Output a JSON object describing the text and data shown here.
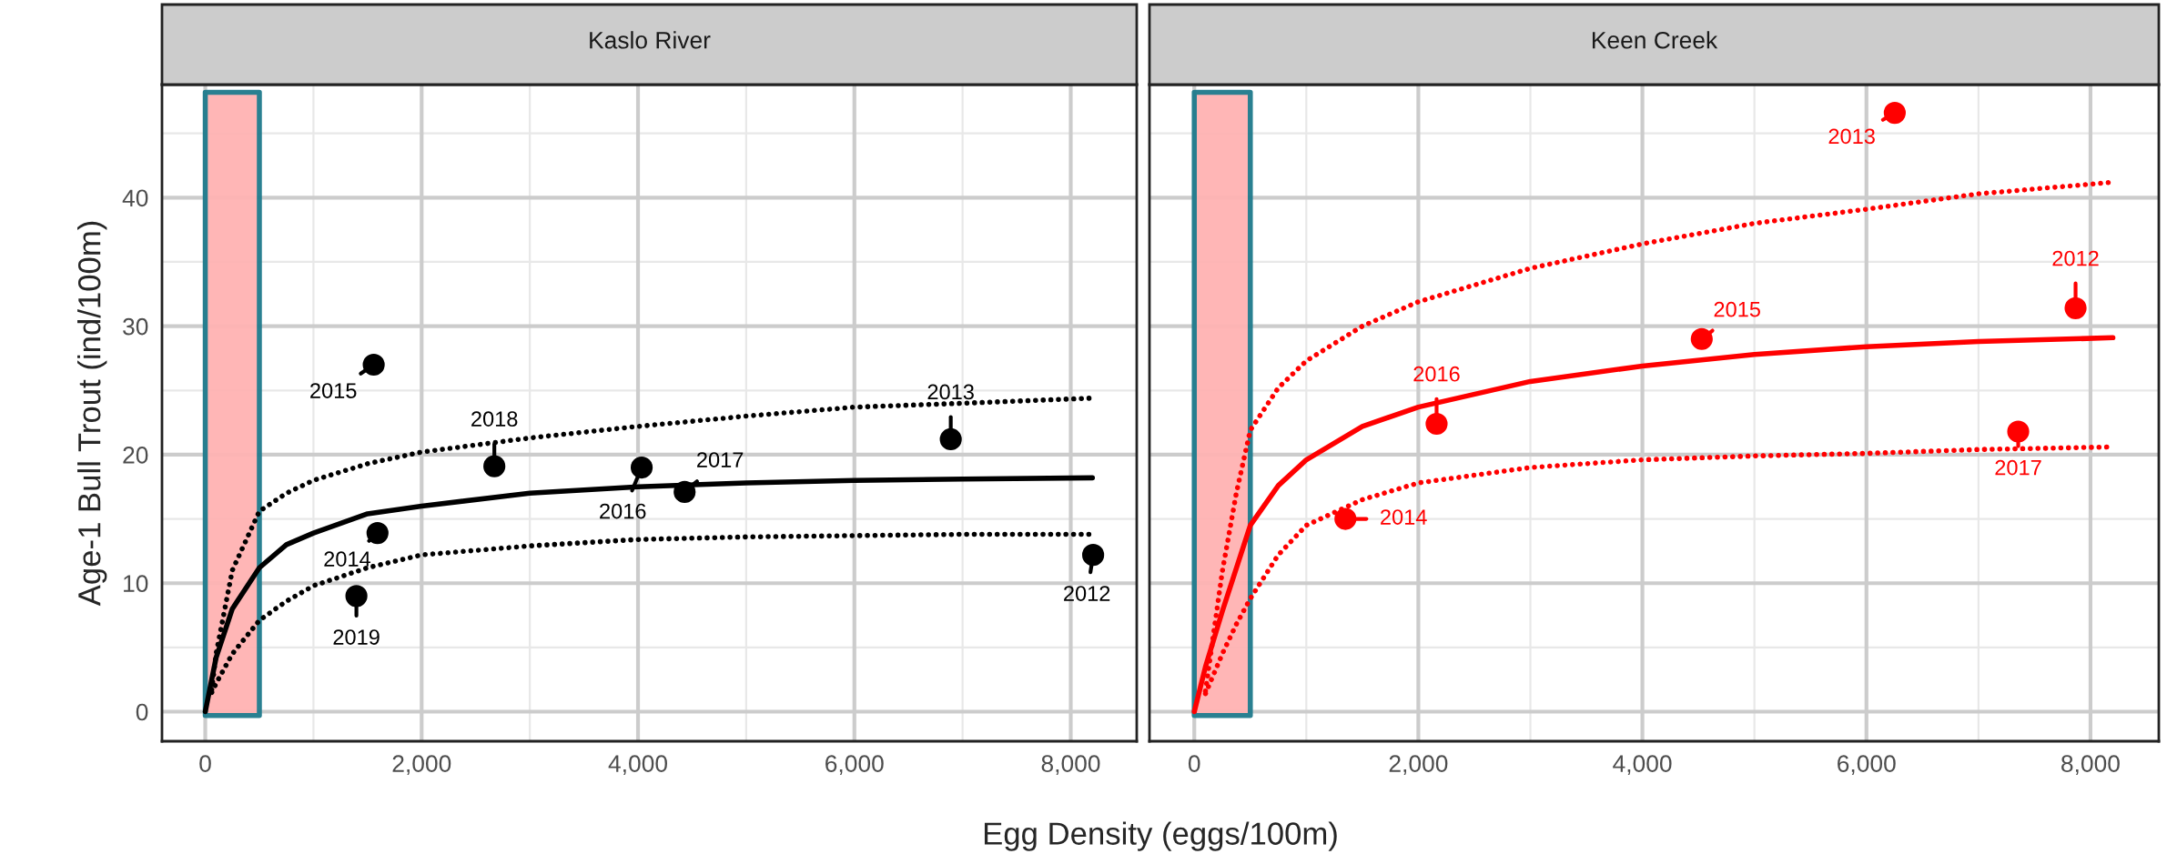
{
  "chart_data": [
    {
      "type": "scatter",
      "title": "Kaslo River",
      "xlabel": "Egg Density (eggs/100m)",
      "ylabel": "Age-1 Bull Trout (ind/100m)",
      "xlim": [
        -400,
        8610
      ],
      "ylim": [
        -2.3,
        48.8
      ],
      "xticks": [
        0,
        {
          "value": 2000,
          "label": "2,000"
        },
        {
          "value": 4000,
          "label": "4,000"
        },
        {
          "value": 6000,
          "label": "6,000"
        },
        {
          "value": 8000,
          "label": "8,000"
        }
      ],
      "yticks": [
        0,
        10,
        20,
        30,
        40
      ],
      "grid": true,
      "bands": [
        {
          "axis": "x",
          "from": 0,
          "to": 500,
          "color": "#ffb3b3"
        }
      ],
      "series": [
        {
          "marker": "circle",
          "color": "#000000",
          "x": [
            1557,
            2672,
            4034,
            4431,
            6891,
            1592,
            1397,
            8207
          ],
          "values": [
            27.0,
            19.1,
            19.0,
            17.1,
            21.2,
            13.9,
            9.0,
            12.2
          ]
        },
        {
          "type": "line",
          "color": "#000000",
          "line_style": "solid",
          "x": [
            0,
            100,
            250,
            500,
            750,
            1000,
            1500,
            2000,
            3000,
            4000,
            5000,
            6000,
            7000,
            8200
          ],
          "values": [
            0,
            4.2,
            8.0,
            11.2,
            13.0,
            13.9,
            15.4,
            16.0,
            17.0,
            17.5,
            17.8,
            18.0,
            18.1,
            18.2
          ]
        },
        {
          "type": "line",
          "color": "#000000",
          "line_style": "dotted",
          "x": [
            60,
            100,
            250,
            500,
            750,
            1000,
            1500,
            2000,
            3000,
            4000,
            5000,
            6000,
            7000,
            8200
          ],
          "values": [
            1.7,
            4.5,
            11.0,
            15.6,
            17.0,
            18.0,
            19.3,
            20.2,
            21.3,
            22.2,
            23.0,
            23.7,
            24.0,
            24.4
          ]
        },
        {
          "type": "line",
          "color": "#000000",
          "line_style": "dotted",
          "x": [
            60,
            100,
            250,
            500,
            750,
            1000,
            1500,
            2000,
            3000,
            4000,
            5000,
            6000,
            7000,
            8200
          ],
          "values": [
            1.5,
            2.2,
            4.5,
            7.1,
            8.6,
            9.8,
            11.2,
            12.2,
            12.9,
            13.4,
            13.6,
            13.7,
            13.8,
            13.8
          ]
        }
      ],
      "annotations": [
        {
          "text": "2015",
          "x": 1557,
          "y": 27.0
        },
        {
          "text": "2018",
          "x": 2672,
          "y": 19.1
        },
        {
          "text": "2016",
          "x": 4034,
          "y": 19.0
        },
        {
          "text": "2017",
          "x": 4431,
          "y": 17.1
        },
        {
          "text": "2013",
          "x": 6891,
          "y": 21.2
        },
        {
          "text": "2014",
          "x": 1592,
          "y": 13.9
        },
        {
          "text": "2019",
          "x": 1397,
          "y": 9.0
        },
        {
          "text": "2012",
          "x": 8207,
          "y": 12.2
        }
      ]
    },
    {
      "type": "scatter",
      "title": "Keen Creek",
      "xlim": [
        -400,
        8610
      ],
      "ylim": [
        -2.3,
        48.8
      ],
      "tick_labels": "x",
      "xticks": [
        0,
        {
          "value": 2000,
          "label": "2,000"
        },
        {
          "value": 4000,
          "label": "4,000"
        },
        {
          "value": 6000,
          "label": "6,000"
        },
        {
          "value": 8000,
          "label": "8,000"
        }
      ],
      "yticks": [
        0,
        10,
        20,
        30,
        40
      ],
      "grid": true,
      "bands": [
        {
          "axis": "x",
          "from": 0,
          "to": 500,
          "color": "#ffb3b3"
        }
      ],
      "series": [
        {
          "marker": "circle",
          "color": "#ff0000",
          "x": [
            6253,
            7867,
            4530,
            2163,
            7355,
            1349
          ],
          "values": [
            46.6,
            31.4,
            29.0,
            22.4,
            21.8,
            15.0
          ]
        },
        {
          "type": "line",
          "color": "#ff0000",
          "line_style": "solid",
          "x": [
            0,
            100,
            250,
            500,
            750,
            1000,
            1500,
            2000,
            3000,
            4000,
            5000,
            6000,
            7000,
            8200
          ],
          "values": [
            0,
            3.5,
            7.8,
            14.5,
            17.6,
            19.6,
            22.2,
            23.7,
            25.7,
            26.9,
            27.8,
            28.4,
            28.8,
            29.1
          ]
        },
        {
          "type": "line",
          "color": "#ff0000",
          "line_style": "dotted",
          "x": [
            100,
            250,
            375,
            500,
            750,
            1000,
            1500,
            2000,
            3000,
            4000,
            5000,
            6000,
            7000,
            8200
          ],
          "values": [
            1.6,
            10.9,
            17.0,
            21.9,
            25.2,
            27.3,
            30.0,
            31.9,
            34.5,
            36.4,
            38.0,
            39.1,
            40.3,
            41.2
          ]
        },
        {
          "type": "line",
          "color": "#ff0000",
          "line_style": "dotted",
          "x": [
            100,
            250,
            375,
            500,
            750,
            1000,
            1500,
            2000,
            3000,
            4000,
            5000,
            6000,
            7000,
            8200
          ],
          "values": [
            1.4,
            4.5,
            6.8,
            8.8,
            12.2,
            14.5,
            16.5,
            17.8,
            19.0,
            19.6,
            19.9,
            20.1,
            20.4,
            20.6
          ]
        }
      ],
      "annotations": [
        {
          "text": "2013",
          "x": 6253,
          "y": 46.6
        },
        {
          "text": "2012",
          "x": 7867,
          "y": 31.4
        },
        {
          "text": "2015",
          "x": 4530,
          "y": 29.0
        },
        {
          "text": "2016",
          "x": 2163,
          "y": 22.4
        },
        {
          "text": "2017",
          "x": 7355,
          "y": 21.8
        },
        {
          "text": "2014",
          "x": 1349,
          "y": 15.0
        }
      ]
    }
  ]
}
